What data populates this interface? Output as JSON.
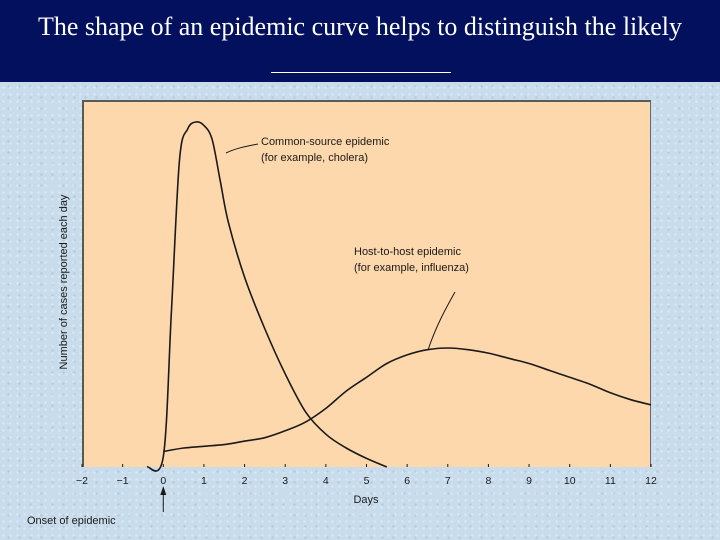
{
  "slide": {
    "title": "The shape of an epidemic curve helps to distinguish the likely"
  },
  "chart_data": {
    "type": "line",
    "xlabel": "Days",
    "ylabel": "Number of cases reported each day",
    "xlim": [
      -2,
      12
    ],
    "ylim": [
      0,
      1
    ],
    "x_ticks": [
      -2,
      -1,
      0,
      1,
      2,
      3,
      4,
      5,
      6,
      7,
      8,
      9,
      10,
      11,
      12
    ],
    "x_tick_labels": [
      "−2",
      "−1",
      "0",
      "1",
      "2",
      "3",
      "4",
      "5",
      "6",
      "7",
      "8",
      "9",
      "10",
      "11",
      "12"
    ],
    "onset_marker": {
      "x": 0,
      "label": "Onset of epidemic"
    },
    "series": [
      {
        "name_lines": [
          "Common-source epidemic",
          "(for example, cholera)"
        ],
        "x": [
          -0.4,
          0.0,
          0.2,
          0.4,
          0.6,
          0.8,
          1.0,
          1.2,
          1.4,
          1.6,
          2.0,
          2.5,
          3.0,
          3.5,
          4.0,
          4.5,
          5.0,
          5.5
        ],
        "y": [
          0.0,
          0.03,
          0.45,
          0.89,
          0.98,
          1.0,
          0.99,
          0.95,
          0.83,
          0.71,
          0.55,
          0.4,
          0.27,
          0.16,
          0.095,
          0.055,
          0.025,
          0.0
        ]
      },
      {
        "name_lines": [
          "Host-to-host epidemic",
          "(for example, influenza)"
        ],
        "x": [
          0.0,
          0.5,
          1.0,
          1.5,
          2.0,
          2.5,
          3.0,
          3.5,
          4.0,
          4.5,
          5.0,
          5.5,
          6.0,
          6.5,
          7.0,
          7.5,
          8.0,
          8.5,
          9.0,
          9.5,
          10.0,
          10.5,
          11.0,
          11.5,
          12.0
        ],
        "y": [
          0.045,
          0.055,
          0.06,
          0.065,
          0.075,
          0.085,
          0.105,
          0.13,
          0.17,
          0.22,
          0.26,
          0.3,
          0.325,
          0.34,
          0.345,
          0.34,
          0.33,
          0.315,
          0.3,
          0.28,
          0.26,
          0.24,
          0.215,
          0.195,
          0.18
        ]
      }
    ]
  }
}
